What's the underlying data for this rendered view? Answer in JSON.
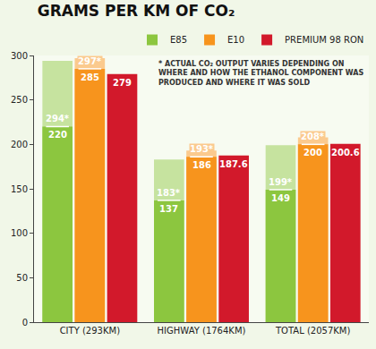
{
  "chart_data": {
    "type": "bar",
    "title": "GRAMS PER KM OF CO₂",
    "categories": [
      "CITY (293KM)",
      "HIGHWAY (1764KM)",
      "TOTAL (2057KM)"
    ],
    "series": [
      {
        "name": "E85",
        "color": "#8cc63f",
        "values": [
          220,
          137,
          149
        ],
        "upper_values": [
          294,
          183,
          199
        ],
        "upper_labels": [
          "294*",
          "183*",
          "199*"
        ]
      },
      {
        "name": "E10",
        "color": "#f7941d",
        "values": [
          285,
          186,
          200
        ],
        "upper_values": [
          297,
          193,
          208
        ],
        "upper_labels": [
          "297*",
          "193*",
          "208*"
        ]
      },
      {
        "name": "PREMIUM 98 RON",
        "color": "#d2192b",
        "values": [
          279,
          187.6,
          200.6
        ]
      }
    ],
    "annotations": [
      "* ACTUAL CO₂ OUTPUT VARIES DEPENDING ON WHERE AND HOW THE ETHANOL COMPONENT WAS PRODUCED AND WHERE IT WAS SOLD"
    ],
    "ylim": [
      0,
      300
    ],
    "yticks": [
      0,
      50,
      100,
      150,
      200,
      250,
      300
    ],
    "grid": false,
    "legend": "top right",
    "data_labels": true
  }
}
